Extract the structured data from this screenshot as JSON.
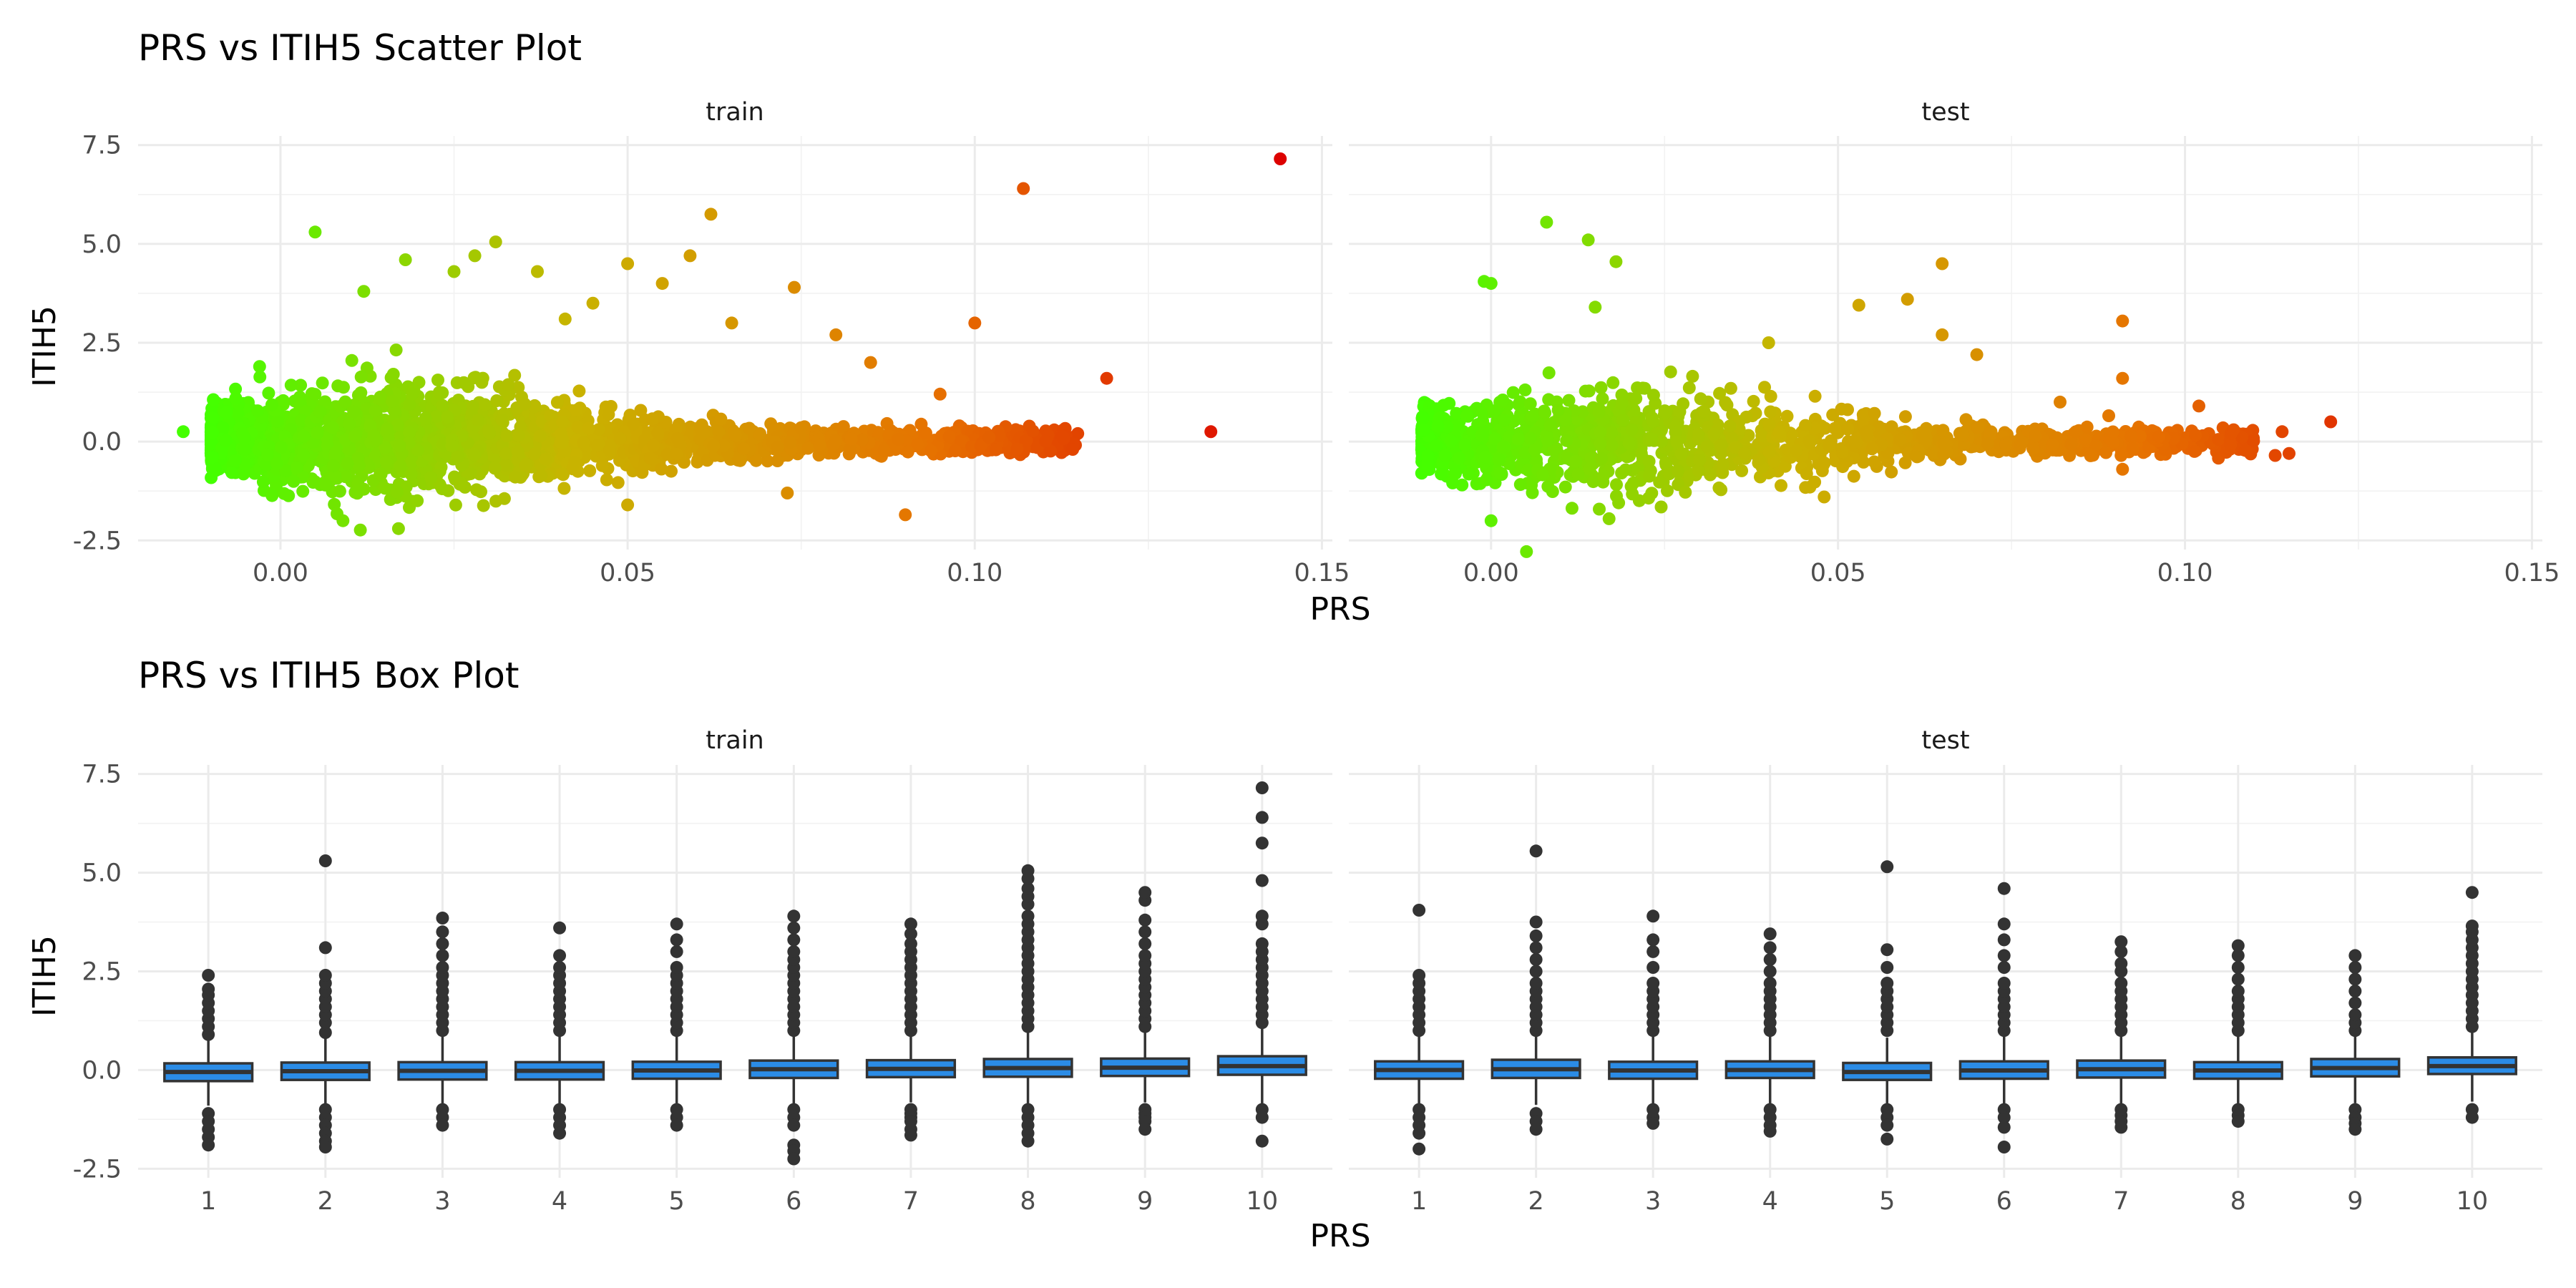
{
  "chart_data": [
    {
      "type": "scatter",
      "title": "PRS vs ITIH5 Scatter Plot",
      "xlabel": "PRS",
      "ylabel": "ITIH5",
      "xlim": [
        -0.02,
        0.15
      ],
      "ylim": [
        -2.5,
        7.5
      ],
      "x_ticks": [
        "0.00",
        "0.05",
        "0.10",
        "0.15"
      ],
      "x_tick_values": [
        0.0,
        0.05,
        0.1,
        0.15
      ],
      "y_ticks": [
        "-2.5",
        "0.0",
        "2.5",
        "5.0",
        "7.5"
      ],
      "y_tick_values": [
        -2.5,
        0.0,
        2.5,
        5.0,
        7.5
      ],
      "color_gradient": [
        "#44ff00",
        "#c8b400",
        "#e67300",
        "#dd0000"
      ],
      "facets": [
        {
          "label": "train",
          "dense_cloud": {
            "x_range": [
              -0.01,
              0.115
            ],
            "y_center": 0.0,
            "n": 2600
          },
          "points": [
            [
              -0.014,
              0.25
            ],
            [
              0.005,
              5.3
            ],
            [
              0.012,
              3.8
            ],
            [
              0.018,
              4.6
            ],
            [
              0.025,
              4.3
            ],
            [
              0.028,
              4.7
            ],
            [
              0.031,
              5.05
            ],
            [
              0.037,
              4.3
            ],
            [
              0.05,
              4.5
            ],
            [
              0.055,
              4.0
            ],
            [
              0.059,
              4.7
            ],
            [
              0.062,
              5.75
            ],
            [
              0.074,
              3.9
            ],
            [
              0.1,
              3.0
            ],
            [
              0.107,
              6.4
            ],
            [
              0.119,
              1.6
            ],
            [
              0.134,
              0.25
            ],
            [
              0.144,
              7.15
            ],
            [
              0.09,
              -1.85
            ],
            [
              0.009,
              -2.0
            ],
            [
              0.017,
              -2.2
            ],
            [
              0.05,
              -1.6
            ],
            [
              0.073,
              -1.3
            ],
            [
              0.065,
              3.0
            ],
            [
              0.08,
              2.7
            ],
            [
              0.085,
              2.0
            ],
            [
              0.095,
              1.2
            ],
            [
              0.045,
              3.5
            ],
            [
              0.041,
              3.1
            ],
            [
              -0.003,
              1.9
            ]
          ]
        },
        {
          "label": "test",
          "dense_cloud": {
            "x_range": [
              -0.01,
              0.11
            ],
            "y_center": 0.0,
            "n": 1500
          },
          "points": [
            [
              -0.001,
              4.05
            ],
            [
              0.0,
              4.0
            ],
            [
              0.008,
              5.55
            ],
            [
              0.014,
              5.1
            ],
            [
              0.018,
              4.55
            ],
            [
              0.015,
              3.4
            ],
            [
              0.053,
              3.45
            ],
            [
              0.06,
              3.6
            ],
            [
              0.065,
              4.5
            ],
            [
              0.091,
              3.05
            ],
            [
              0.091,
              1.6
            ],
            [
              0.121,
              0.5
            ],
            [
              0.114,
              0.25
            ],
            [
              0.115,
              -0.3
            ],
            [
              0.113,
              -0.35
            ],
            [
              0.0,
              -2.0
            ],
            [
              0.017,
              -1.95
            ],
            [
              0.048,
              -1.4
            ],
            [
              0.07,
              2.2
            ],
            [
              0.065,
              2.7
            ],
            [
              0.082,
              1.0
            ],
            [
              0.102,
              0.9
            ],
            [
              0.107,
              0.3
            ],
            [
              0.04,
              2.5
            ],
            [
              0.091,
              -0.7
            ]
          ]
        }
      ]
    },
    {
      "type": "box",
      "title": "PRS vs ITIH5 Box Plot",
      "xlabel": "PRS",
      "ylabel": "ITIH5",
      "ylim": [
        -2.5,
        7.5
      ],
      "categories": [
        "1",
        "2",
        "3",
        "4",
        "5",
        "6",
        "7",
        "8",
        "9",
        "10"
      ],
      "y_ticks": [
        "-2.5",
        "0.0",
        "2.5",
        "5.0",
        "7.5"
      ],
      "y_tick_values": [
        -2.5,
        0.0,
        2.5,
        5.0,
        7.5
      ],
      "box_color": "#2b8ce6",
      "facets": [
        {
          "label": "train",
          "boxes": [
            {
              "q1": -0.28,
              "median": -0.05,
              "q3": 0.17,
              "whisker_low": -0.9,
              "whisker_high": 0.8,
              "outliers_high": [
                0.9,
                1.1,
                1.3,
                1.5,
                1.7,
                1.9,
                2.05,
                2.4
              ],
              "outliers_low": [
                -1.1,
                -1.3,
                -1.5,
                -1.7,
                -1.9
              ]
            },
            {
              "q1": -0.25,
              "median": -0.03,
              "q3": 0.19,
              "whisker_low": -0.9,
              "whisker_high": 0.85,
              "outliers_high": [
                0.95,
                1.2,
                1.4,
                1.6,
                1.8,
                2.0,
                2.2,
                2.4,
                3.1,
                5.3
              ],
              "outliers_low": [
                -1.0,
                -1.2,
                -1.4,
                -1.6,
                -1.8,
                -1.95
              ]
            },
            {
              "q1": -0.24,
              "median": -0.02,
              "q3": 0.2,
              "whisker_low": -0.9,
              "whisker_high": 0.86,
              "outliers_high": [
                1.0,
                1.2,
                1.4,
                1.6,
                1.8,
                2.0,
                2.2,
                2.4,
                2.6,
                2.9,
                3.2,
                3.5,
                3.85
              ],
              "outliers_low": [
                -1.0,
                -1.2,
                -1.4
              ]
            },
            {
              "q1": -0.24,
              "median": -0.02,
              "q3": 0.2,
              "whisker_low": -0.9,
              "whisker_high": 0.86,
              "outliers_high": [
                1.0,
                1.2,
                1.4,
                1.6,
                1.8,
                2.0,
                2.2,
                2.4,
                2.6,
                2.9,
                3.6
              ],
              "outliers_low": [
                -1.0,
                -1.2,
                -1.4,
                -1.6
              ]
            },
            {
              "q1": -0.22,
              "median": -0.01,
              "q3": 0.21,
              "whisker_low": -0.88,
              "whisker_high": 0.88,
              "outliers_high": [
                1.0,
                1.2,
                1.4,
                1.6,
                1.8,
                2.0,
                2.2,
                2.4,
                2.6,
                3.0,
                3.3,
                3.7
              ],
              "outliers_low": [
                -1.0,
                -1.2,
                -1.4
              ]
            },
            {
              "q1": -0.2,
              "median": 0.02,
              "q3": 0.24,
              "whisker_low": -0.85,
              "whisker_high": 0.9,
              "outliers_high": [
                1.0,
                1.2,
                1.4,
                1.6,
                1.8,
                2.0,
                2.2,
                2.4,
                2.6,
                2.8,
                3.0,
                3.3,
                3.6,
                3.9
              ],
              "outliers_low": [
                -1.0,
                -1.2,
                -1.4,
                -1.9,
                -2.05,
                -2.25
              ]
            },
            {
              "q1": -0.18,
              "median": 0.03,
              "q3": 0.25,
              "whisker_low": -0.82,
              "whisker_high": 0.92,
              "outliers_high": [
                1.0,
                1.2,
                1.4,
                1.6,
                1.8,
                2.0,
                2.2,
                2.4,
                2.6,
                2.8,
                3.0,
                3.2,
                3.45,
                3.7
              ],
              "outliers_low": [
                -1.0,
                -1.1,
                -1.2,
                -1.3,
                -1.5,
                -1.65
              ]
            },
            {
              "q1": -0.17,
              "median": 0.05,
              "q3": 0.28,
              "whisker_low": -0.85,
              "whisker_high": 0.98,
              "outliers_high": [
                1.1,
                1.3,
                1.5,
                1.7,
                1.9,
                2.1,
                2.3,
                2.5,
                2.7,
                2.9,
                3.1,
                3.3,
                3.5,
                3.7,
                3.9,
                4.2,
                4.4,
                4.6,
                4.85,
                5.05
              ],
              "outliers_low": [
                -1.0,
                -1.2,
                -1.4,
                -1.6,
                -1.8
              ]
            },
            {
              "q1": -0.15,
              "median": 0.06,
              "q3": 0.29,
              "whisker_low": -0.82,
              "whisker_high": 1.0,
              "outliers_high": [
                1.1,
                1.3,
                1.5,
                1.7,
                1.9,
                2.1,
                2.3,
                2.5,
                2.7,
                2.9,
                3.2,
                3.5,
                3.8,
                4.3,
                4.5
              ],
              "outliers_low": [
                -1.0,
                -1.1,
                -1.2,
                -1.3,
                -1.5
              ]
            },
            {
              "q1": -0.12,
              "median": 0.1,
              "q3": 0.35,
              "whisker_low": -0.85,
              "whisker_high": 1.1,
              "outliers_high": [
                1.2,
                1.4,
                1.6,
                1.8,
                2.0,
                2.2,
                2.4,
                2.6,
                2.8,
                3.0,
                3.2,
                3.7,
                3.9,
                4.8,
                5.75,
                6.4,
                7.15
              ],
              "outliers_low": [
                -1.0,
                -1.2,
                -1.8
              ]
            }
          ]
        },
        {
          "label": "test",
          "boxes": [
            {
              "q1": -0.22,
              "median": 0.0,
              "q3": 0.22,
              "whisker_low": -0.88,
              "whisker_high": 0.88,
              "outliers_high": [
                1.0,
                1.2,
                1.4,
                1.6,
                1.8,
                2.0,
                2.2,
                2.4,
                4.05
              ],
              "outliers_low": [
                -1.0,
                -1.2,
                -1.4,
                -1.6,
                -2.0
              ]
            },
            {
              "q1": -0.2,
              "median": 0.02,
              "q3": 0.26,
              "whisker_low": -0.88,
              "whisker_high": 0.92,
              "outliers_high": [
                1.0,
                1.2,
                1.4,
                1.6,
                1.8,
                2.0,
                2.2,
                2.5,
                2.8,
                3.1,
                3.4,
                3.75,
                5.55
              ],
              "outliers_low": [
                -1.1,
                -1.3,
                -1.5
              ]
            },
            {
              "q1": -0.22,
              "median": -0.01,
              "q3": 0.21,
              "whisker_low": -0.88,
              "whisker_high": 0.86,
              "outliers_high": [
                1.0,
                1.2,
                1.4,
                1.6,
                1.8,
                2.0,
                2.2,
                2.6,
                3.0,
                3.3,
                3.9
              ],
              "outliers_low": [
                -1.0,
                -1.2,
                -1.35
              ]
            },
            {
              "q1": -0.2,
              "median": 0.0,
              "q3": 0.22,
              "whisker_low": -0.86,
              "whisker_high": 0.87,
              "outliers_high": [
                1.0,
                1.2,
                1.4,
                1.6,
                1.8,
                2.0,
                2.2,
                2.5,
                2.8,
                3.1,
                3.45
              ],
              "outliers_low": [
                -1.0,
                -1.2,
                -1.4,
                -1.55
              ]
            },
            {
              "q1": -0.25,
              "median": -0.05,
              "q3": 0.18,
              "whisker_low": -0.9,
              "whisker_high": 0.82,
              "outliers_high": [
                1.0,
                1.2,
                1.4,
                1.6,
                1.8,
                2.0,
                2.2,
                2.6,
                3.05,
                5.15
              ],
              "outliers_low": [
                -1.0,
                -1.2,
                -1.4,
                -1.75
              ]
            },
            {
              "q1": -0.22,
              "median": -0.01,
              "q3": 0.22,
              "whisker_low": -0.88,
              "whisker_high": 0.87,
              "outliers_high": [
                1.0,
                1.2,
                1.4,
                1.6,
                1.8,
                2.0,
                2.2,
                2.6,
                2.9,
                3.3,
                3.7,
                4.6
              ],
              "outliers_low": [
                -1.0,
                -1.2,
                -1.45,
                -1.95
              ]
            },
            {
              "q1": -0.19,
              "median": 0.02,
              "q3": 0.24,
              "whisker_low": -0.86,
              "whisker_high": 0.9,
              "outliers_high": [
                1.0,
                1.2,
                1.4,
                1.6,
                1.8,
                2.0,
                2.2,
                2.5,
                2.7,
                3.0,
                3.25
              ],
              "outliers_low": [
                -1.0,
                -1.15,
                -1.3,
                -1.45
              ]
            },
            {
              "q1": -0.22,
              "median": -0.01,
              "q3": 0.2,
              "whisker_low": -0.86,
              "whisker_high": 0.85,
              "outliers_high": [
                1.0,
                1.2,
                1.4,
                1.6,
                1.8,
                2.0,
                2.3,
                2.6,
                2.9,
                3.15
              ],
              "outliers_low": [
                -1.0,
                -1.15,
                -1.3
              ]
            },
            {
              "q1": -0.16,
              "median": 0.05,
              "q3": 0.28,
              "whisker_low": -0.84,
              "whisker_high": 0.95,
              "outliers_high": [
                1.0,
                1.2,
                1.4,
                1.7,
                2.0,
                2.3,
                2.6,
                2.9
              ],
              "outliers_low": [
                -1.0,
                -1.2,
                -1.35,
                -1.5
              ]
            },
            {
              "q1": -0.1,
              "median": 0.1,
              "q3": 0.32,
              "whisker_low": -0.8,
              "whisker_high": 1.0,
              "outliers_high": [
                1.1,
                1.3,
                1.5,
                1.7,
                1.9,
                2.1,
                2.3,
                2.5,
                2.7,
                2.9,
                3.1,
                3.3,
                3.5,
                3.65,
                4.5
              ],
              "outliers_low": [
                -1.0,
                -1.2
              ]
            }
          ]
        }
      ]
    }
  ]
}
